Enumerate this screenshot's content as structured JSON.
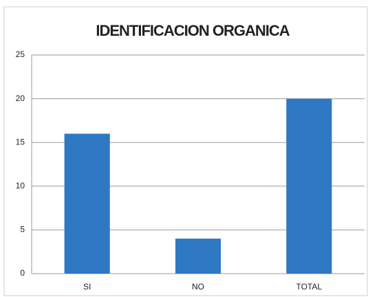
{
  "chart_data": {
    "type": "bar",
    "title": "IDENTIFICACION ORGANICA",
    "categories": [
      "SI",
      "NO",
      "TOTAL"
    ],
    "values": [
      16,
      4,
      20
    ],
    "color": "#2e78c4",
    "ylim": [
      0,
      25
    ],
    "yticks": [
      0,
      5,
      10,
      15,
      20,
      25
    ],
    "grid": true
  }
}
